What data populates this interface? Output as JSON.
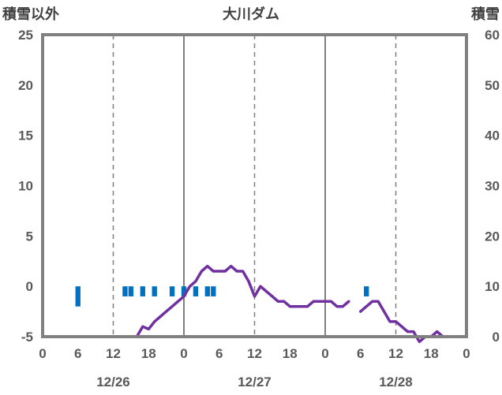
{
  "chart_data": {
    "type": "bar+line",
    "title": "大川ダム",
    "left_axis_label": "積雪以外",
    "right_axis_label": "積雪",
    "left_ylim": [
      -5,
      25
    ],
    "right_ylim": [
      0,
      60
    ],
    "left_ticks": [
      "25",
      "20",
      "15",
      "10",
      "5",
      "0",
      "-5"
    ],
    "right_ticks": [
      "60",
      "50",
      "40",
      "30",
      "20",
      "10",
      "0"
    ],
    "x_hour_ticks": [
      "0",
      "6",
      "12",
      "18",
      "0",
      "6",
      "12",
      "18",
      "0",
      "6",
      "12",
      "18",
      "0"
    ],
    "x_date_labels": [
      "12/26",
      "12/27",
      "12/28"
    ],
    "x_range_hours": [
      0,
      72
    ],
    "grid": "vertical dashed every 12h, solid at day boundaries",
    "colors": {
      "bars": "#0070c0",
      "line": "#7030a0",
      "frame": "#808080"
    },
    "bars_left_axis": {
      "name": "",
      "points": [
        {
          "x": 6,
          "y": -2.0
        },
        {
          "x": 14,
          "y": -1.0
        },
        {
          "x": 15,
          "y": -1.0
        },
        {
          "x": 17,
          "y": -1.0
        },
        {
          "x": 19,
          "y": -1.0
        },
        {
          "x": 22,
          "y": -1.0
        },
        {
          "x": 24,
          "y": -1.0
        },
        {
          "x": 26,
          "y": -1.0
        },
        {
          "x": 28,
          "y": -1.0
        },
        {
          "x": 29,
          "y": -1.0
        },
        {
          "x": 55,
          "y": -1.0
        }
      ]
    },
    "line_right_axis": {
      "name": "",
      "segments": [
        [
          [
            0,
            0
          ],
          [
            1,
            0
          ],
          [
            2,
            0
          ],
          [
            3,
            0
          ],
          [
            4,
            0
          ],
          [
            5,
            0
          ],
          [
            6,
            0
          ],
          [
            8,
            0
          ],
          [
            9,
            0
          ],
          [
            10,
            0
          ],
          [
            11,
            0
          ],
          [
            12,
            0
          ],
          [
            13,
            0
          ],
          [
            14,
            0
          ],
          [
            15,
            0
          ],
          [
            16,
            0
          ],
          [
            17,
            2
          ],
          [
            18,
            1.5
          ],
          [
            19,
            3
          ],
          [
            20,
            4
          ],
          [
            21,
            5
          ],
          [
            22,
            6
          ],
          [
            23,
            7
          ],
          [
            24,
            8
          ],
          [
            25,
            10
          ],
          [
            26,
            11
          ],
          [
            27,
            13
          ],
          [
            28,
            14
          ],
          [
            29,
            13
          ],
          [
            30,
            13
          ],
          [
            31,
            13
          ],
          [
            32,
            14
          ],
          [
            33,
            13
          ],
          [
            34,
            13
          ],
          [
            35,
            11
          ],
          [
            36,
            8
          ],
          [
            37,
            10
          ],
          [
            38,
            9
          ],
          [
            39,
            8
          ],
          [
            40,
            7
          ],
          [
            41,
            7
          ],
          [
            42,
            6
          ],
          [
            43,
            6
          ],
          [
            44,
            6
          ],
          [
            45,
            6
          ],
          [
            46,
            7
          ],
          [
            47,
            7
          ],
          [
            48,
            7
          ],
          [
            49,
            7
          ],
          [
            50,
            6
          ],
          [
            51,
            6
          ],
          [
            52,
            7
          ]
        ],
        [
          [
            54,
            5
          ],
          [
            55,
            6
          ],
          [
            56,
            7
          ],
          [
            57,
            7
          ],
          [
            58,
            5
          ],
          [
            59,
            3
          ],
          [
            60,
            3
          ],
          [
            61,
            2
          ],
          [
            62,
            1
          ],
          [
            63,
            1
          ],
          [
            64,
            -1
          ],
          [
            65,
            0
          ],
          [
            66,
            0
          ],
          [
            67,
            1
          ],
          [
            68,
            0
          ],
          [
            69,
            0
          ],
          [
            70,
            0
          ],
          [
            71,
            0
          ],
          [
            72,
            0
          ]
        ]
      ]
    }
  }
}
